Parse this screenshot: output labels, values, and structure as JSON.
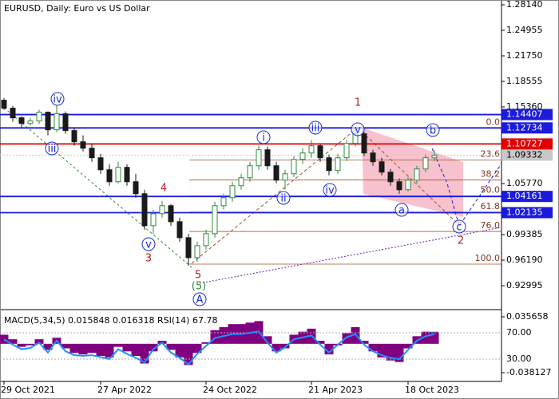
{
  "chart_data": {
    "type": "candlestick",
    "title": "EURUSD, Daily:  Euro vs US Dollar",
    "categories": [
      "29 Oct 2021",
      null,
      null,
      null,
      null,
      null,
      null,
      null,
      null,
      null,
      null,
      "27 Apr 2022",
      null,
      null,
      null,
      null,
      null,
      null,
      null,
      null,
      null,
      null,
      null,
      "24 Oct 2022",
      null,
      null,
      null,
      null,
      null,
      null,
      null,
      null,
      null,
      null,
      null,
      "21 Apr 2023",
      null,
      null,
      null,
      null,
      null,
      null,
      null,
      null,
      null,
      null,
      "18 Oct 2023",
      null,
      null,
      null
    ],
    "ohlc": [
      [
        1.162,
        1.165,
        1.15,
        1.152
      ],
      [
        1.152,
        1.155,
        1.135,
        1.14
      ],
      [
        1.14,
        1.142,
        1.128,
        1.133
      ],
      [
        1.133,
        1.14,
        1.13,
        1.136
      ],
      [
        1.136,
        1.15,
        1.132,
        1.147
      ],
      [
        1.147,
        1.148,
        1.118,
        1.125
      ],
      [
        1.125,
        1.155,
        1.122,
        1.145
      ],
      [
        1.145,
        1.148,
        1.12,
        1.124
      ],
      [
        1.124,
        1.128,
        1.105,
        1.11
      ],
      [
        1.11,
        1.118,
        1.098,
        1.102
      ],
      [
        1.102,
        1.108,
        1.085,
        1.09
      ],
      [
        1.09,
        1.095,
        1.07,
        1.075
      ],
      [
        1.075,
        1.082,
        1.055,
        1.06
      ],
      [
        1.06,
        1.085,
        1.058,
        1.078
      ],
      [
        1.078,
        1.082,
        1.055,
        1.06
      ],
      [
        1.06,
        1.07,
        1.04,
        1.045
      ],
      [
        1.045,
        1.05,
        1.0,
        1.005
      ],
      [
        1.005,
        1.025,
        0.995,
        1.02
      ],
      [
        1.02,
        1.036,
        1.015,
        1.03
      ],
      [
        1.03,
        1.032,
        1.005,
        1.01
      ],
      [
        1.01,
        1.015,
        0.985,
        0.99
      ],
      [
        0.99,
        0.995,
        0.955,
        0.965
      ],
      [
        0.965,
        0.985,
        0.96,
        0.98
      ],
      [
        0.98,
        1.0,
        0.975,
        0.995
      ],
      [
        0.995,
        1.035,
        0.99,
        1.03
      ],
      [
        1.03,
        1.045,
        1.025,
        1.04
      ],
      [
        1.04,
        1.06,
        1.035,
        1.055
      ],
      [
        1.055,
        1.07,
        1.05,
        1.065
      ],
      [
        1.065,
        1.085,
        1.06,
        1.08
      ],
      [
        1.08,
        1.105,
        1.075,
        1.1
      ],
      [
        1.1,
        1.104,
        1.075,
        1.08
      ],
      [
        1.08,
        1.085,
        1.058,
        1.062
      ],
      [
        1.062,
        1.075,
        1.05,
        1.07
      ],
      [
        1.07,
        1.092,
        1.066,
        1.088
      ],
      [
        1.088,
        1.102,
        1.082,
        1.096
      ],
      [
        1.096,
        1.112,
        1.09,
        1.105
      ],
      [
        1.105,
        1.108,
        1.085,
        1.09
      ],
      [
        1.09,
        1.094,
        1.068,
        1.074
      ],
      [
        1.074,
        1.095,
        1.07,
        1.09
      ],
      [
        1.09,
        1.112,
        1.086,
        1.108
      ],
      [
        1.108,
        1.128,
        1.104,
        1.12
      ],
      [
        1.12,
        1.122,
        1.092,
        1.096
      ],
      [
        1.096,
        1.1,
        1.08,
        1.085
      ],
      [
        1.085,
        1.09,
        1.068,
        1.072
      ],
      [
        1.072,
        1.076,
        1.055,
        1.06
      ],
      [
        1.06,
        1.064,
        1.045,
        1.05
      ],
      [
        1.05,
        1.066,
        1.048,
        1.062
      ],
      [
        1.062,
        1.08,
        1.058,
        1.076
      ],
      [
        1.076,
        1.094,
        1.072,
        1.09
      ],
      [
        1.09,
        1.1,
        1.086,
        1.093
      ]
    ],
    "up_color": "#2f8a3a",
    "down_color": "#1a1a1a",
    "ylim": [
      0.901,
      1.2874
    ],
    "yticks": [
      {
        "value": 1.2814,
        "label": "1.28140"
      },
      1.24955,
      {
        "value": 1.2175,
        "label": "1.21750"
      },
      1.18555,
      {
        "value": 1.1536,
        "label": "1.15360"
      },
      {
        "value": 1.0577,
        "label": "1.05770"
      },
      0.99385,
      {
        "value": 0.9619,
        "label": "0.96190"
      },
      0.92995
    ],
    "levels": [
      {
        "value": 1.14407,
        "color": "#1b1bdc"
      },
      {
        "value": 1.12734,
        "color": "#1b1bdc"
      },
      {
        "value": 1.10727,
        "color": "#e00000"
      },
      {
        "value": 1.09332,
        "color": "#c8c8c8"
      },
      {
        "value": 1.04161,
        "color": "#1b1bdc"
      },
      {
        "value": 1.02135,
        "color": "#1b1bdc"
      }
    ],
    "fib_levels": [
      {
        "label": "0.0",
        "value": 1.12734
      },
      {
        "label": "23.6",
        "value": 1.0871
      },
      {
        "label": "38.2",
        "value": 1.0622
      },
      {
        "label": "50.0",
        "value": 1.0421
      },
      {
        "label": "61.8",
        "value": 1.022
      },
      {
        "label": "76.0",
        "value": 0.9978
      },
      {
        "label": "100.0",
        "value": 0.9569
      }
    ],
    "annotations": [
      "iv",
      "iii",
      "v",
      "3",
      "4",
      "5",
      "(5)",
      "A",
      "i",
      "ii",
      "iii",
      "iv",
      "1",
      "v",
      "b",
      "a",
      "c",
      "2"
    ],
    "indicator_title": "MACD(5,34,5) 0.015848 0.016318 RSI(14) 67.78",
    "macd": {
      "color": "#800080",
      "ylim": [
        -0.04972,
        0.04514
      ],
      "yticks": [
        0.035658,
        -0.038127
      ],
      "values": [
        0.012,
        0.006,
        -0.004,
        -0.002,
        0.006,
        -0.008,
        0.008,
        -0.006,
        -0.012,
        -0.014,
        -0.012,
        -0.016,
        -0.018,
        -0.004,
        -0.01,
        -0.016,
        -0.026,
        -0.01,
        0.004,
        -0.008,
        -0.018,
        -0.028,
        -0.012,
        0.002,
        0.018,
        0.022,
        0.026,
        0.026,
        0.028,
        0.03,
        0.01,
        -0.01,
        -0.006,
        0.012,
        0.016,
        0.02,
        0.004,
        -0.014,
        -0.002,
        0.014,
        0.022,
        0.004,
        -0.01,
        -0.018,
        -0.022,
        -0.024,
        -0.006,
        0.01,
        0.016,
        0.015848
      ]
    },
    "rsi": {
      "color": "#1e90ff",
      "ylim": [
        -3.9,
        105.2
      ],
      "yticks": [
        {
          "value": 70,
          "label": "70.00"
        },
        {
          "value": 30,
          "label": "30.00"
        }
      ],
      "values": [
        60,
        52,
        45,
        47,
        55,
        40,
        58,
        42,
        36,
        35,
        36,
        33,
        30,
        45,
        38,
        32,
        25,
        45,
        55,
        40,
        32,
        22,
        38,
        50,
        62,
        65,
        68,
        68,
        70,
        72,
        55,
        40,
        48,
        60,
        63,
        66,
        52,
        40,
        52,
        63,
        68,
        52,
        42,
        36,
        32,
        30,
        44,
        58,
        65,
        67.78
      ]
    }
  }
}
